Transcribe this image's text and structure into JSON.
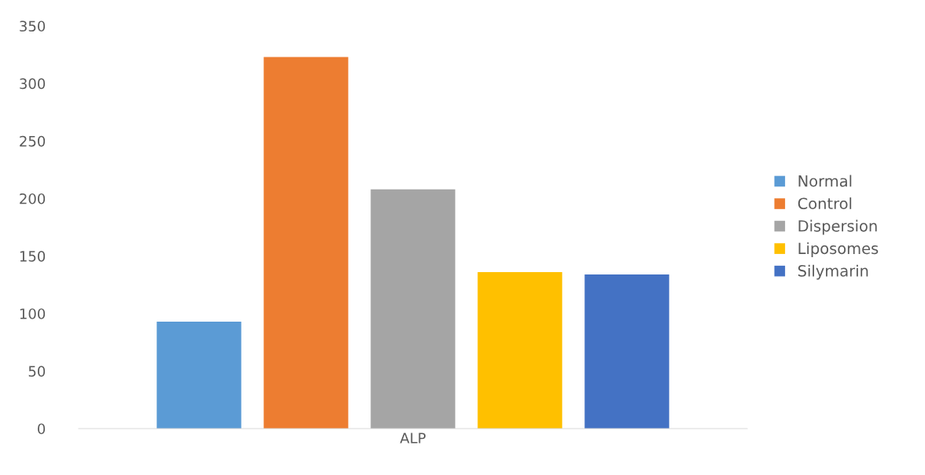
{
  "chart_data": {
    "type": "bar",
    "categories": [
      "ALP"
    ],
    "series": [
      {
        "name": "Normal",
        "color": "#5b9bd5",
        "values": [
          93
        ]
      },
      {
        "name": "Control",
        "color": "#ed7d31",
        "values": [
          323
        ]
      },
      {
        "name": "Dispersion",
        "color": "#a5a5a5",
        "values": [
          208
        ]
      },
      {
        "name": "Liposomes",
        "color": "#ffc000",
        "values": [
          136
        ]
      },
      {
        "name": "Silymarin",
        "color": "#4472c4",
        "values": [
          134
        ]
      }
    ],
    "ylim": [
      0,
      350
    ],
    "yticks": [
      0,
      50,
      100,
      150,
      200,
      250,
      300,
      350
    ],
    "grid": false,
    "legend": "right"
  }
}
